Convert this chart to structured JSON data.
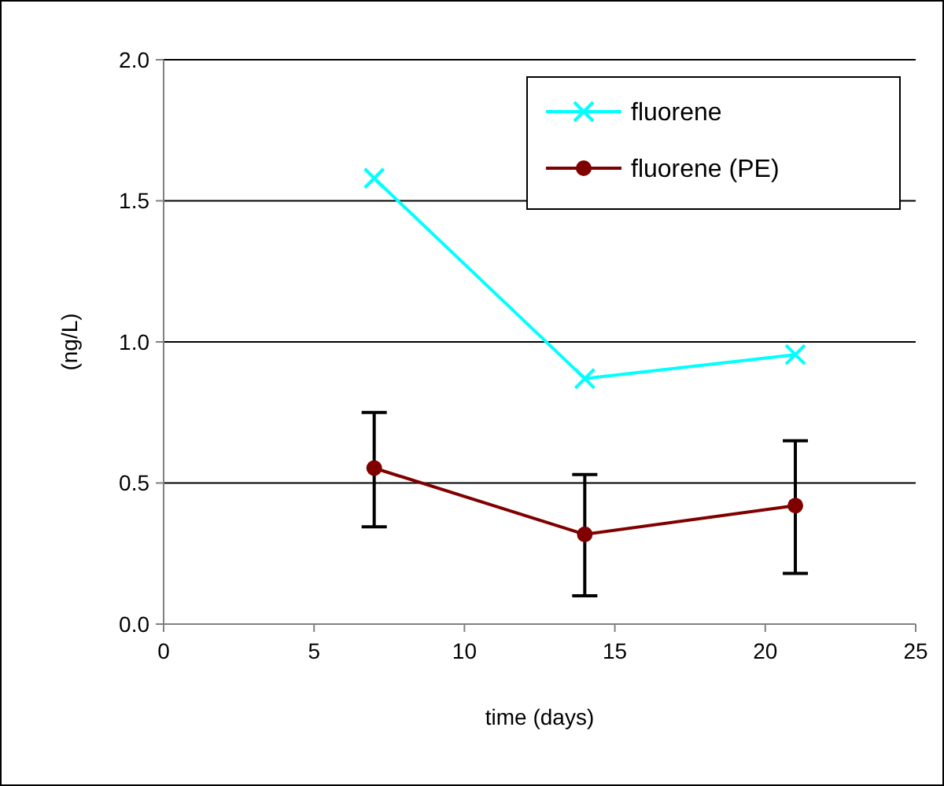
{
  "chart_data": {
    "type": "line",
    "xlabel": "time (days)",
    "ylabel": "(ng/L)",
    "x": [
      7,
      14,
      21
    ],
    "series": [
      {
        "name": "fluorene",
        "color": "#00ffff",
        "marker": "cross",
        "values": [
          1.58,
          0.87,
          0.955
        ]
      },
      {
        "name": "fluorene (PE)",
        "color": "#800000",
        "marker": "circle",
        "values": [
          0.553,
          0.318,
          0.42
        ],
        "errors": [
          [
            0.345,
            0.75
          ],
          [
            0.1,
            0.53
          ],
          [
            0.18,
            0.65
          ]
        ]
      }
    ],
    "xlim": [
      0,
      25
    ],
    "xticks": [
      0,
      5,
      10,
      15,
      20,
      25
    ],
    "ylim": [
      0,
      2
    ],
    "yticks": [
      {
        "value": 0,
        "label": "0.0"
      },
      {
        "value": 0.5,
        "label": "0.5"
      },
      {
        "value": 1,
        "label": "1.0"
      },
      {
        "value": 1.5,
        "label": "1.5"
      },
      {
        "value": 2,
        "label": "2.0"
      }
    ],
    "grid": "y",
    "legend": "top right"
  }
}
